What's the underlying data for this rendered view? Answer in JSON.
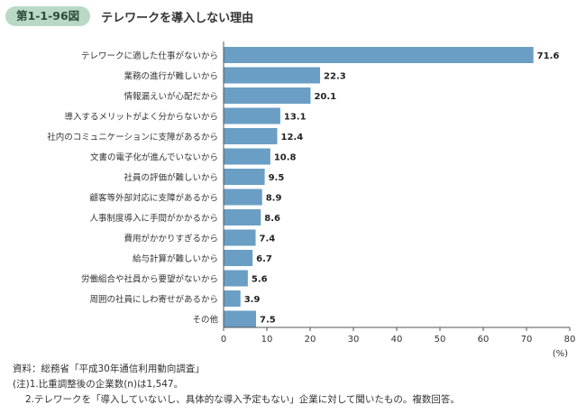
{
  "figure": {
    "number": "第1-1-96図",
    "title": "テレワークを導入しない理由"
  },
  "chart_data": {
    "type": "bar",
    "orientation": "horizontal",
    "categories": [
      "テレワークに適した仕事がないから",
      "業務の進行が難しいから",
      "情報漏えいが心配だから",
      "導入するメリットがよく分からないから",
      "社内のコミュニケーションに支障があるから",
      "文書の電子化が進んでいないから",
      "社員の評価が難しいから",
      "顧客等外部対応に支障があるから",
      "人事制度導入に手間がかかるから",
      "費用がかかりすぎるから",
      "給与計算が難しいから",
      "労働組合や社員から要望がないから",
      "周囲の社員にしわ寄せがあるから",
      "その他"
    ],
    "values": [
      71.6,
      22.3,
      20.1,
      13.1,
      12.4,
      10.8,
      9.5,
      8.9,
      8.6,
      7.4,
      6.7,
      5.6,
      3.9,
      7.5
    ],
    "value_labels": [
      "71.6",
      "22.3",
      "20.1",
      "13.1",
      "12.4",
      "10.8",
      "9.5",
      "8.9",
      "8.6",
      "7.4",
      "6.7",
      "5.6",
      "3.9",
      "7.5"
    ],
    "xlim": [
      0,
      80
    ],
    "x_ticks": [
      "0",
      "10",
      "20",
      "30",
      "40",
      "50",
      "60",
      "70",
      "80"
    ],
    "x_unit": "(%)",
    "bar_color": "#6a9ec4",
    "grid": false
  },
  "notes": {
    "source": "資料：総務省「平成30年通信利用動向調査」",
    "note1": "(注)1.比重調整後の企業数(n)は1,547。",
    "note2": "2.テレワークを「導入していないし、具体的な導入予定もない」企業に対して聞いたもの。複数回答。"
  }
}
